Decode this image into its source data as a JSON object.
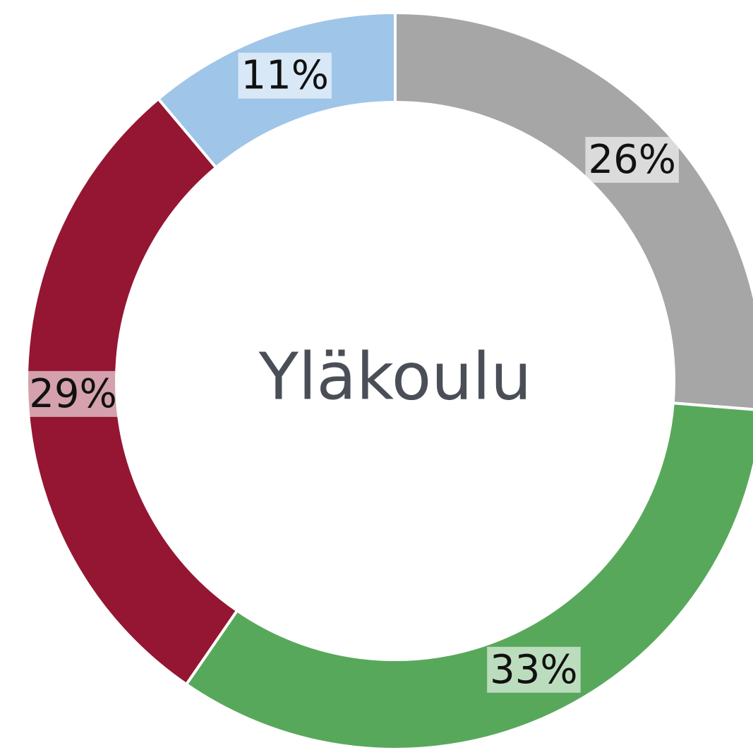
{
  "chart_data": {
    "type": "donut",
    "center_label": "Yläkoulu",
    "values": [
      26,
      33,
      29,
      11
    ],
    "value_labels": [
      "26%",
      "33%",
      "29%",
      "11%"
    ],
    "colors": [
      "#a6a6a6",
      "#58a85c",
      "#941632",
      "#9fc5e8"
    ]
  }
}
